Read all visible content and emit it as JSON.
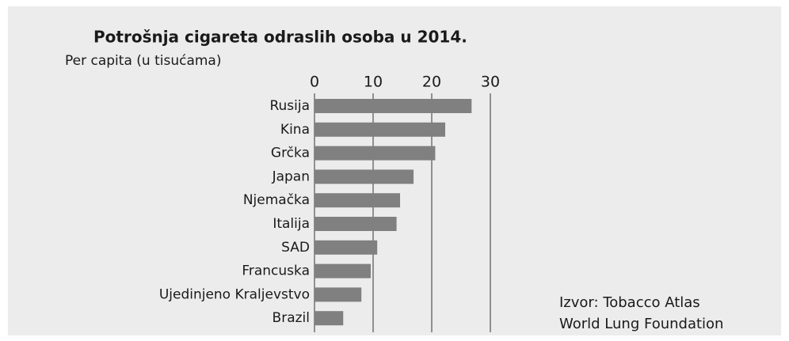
{
  "chart_data": {
    "type": "bar",
    "orientation": "horizontal",
    "title": "Potrošnja cigareta odraslih osoba u 2014.",
    "subtitle": "Per capita (u tisućama)",
    "categories": [
      "Rusija",
      "Kina",
      "Grčka",
      "Japan",
      "Njemačka",
      "Italija",
      "SAD",
      "Francuska",
      "Ujedinjeno Kraljevstvo",
      "Brazil"
    ],
    "values": [
      26.8,
      22.3,
      20.6,
      16.9,
      14.6,
      14.0,
      10.7,
      9.6,
      8.0,
      4.9
    ],
    "color": "#808080",
    "xlim": [
      0,
      30
    ],
    "xticks": [
      0,
      10,
      20,
      30
    ],
    "grid": true,
    "source": [
      "Izvor: Tobacco Atlas",
      "World Lung Foundation"
    ]
  }
}
